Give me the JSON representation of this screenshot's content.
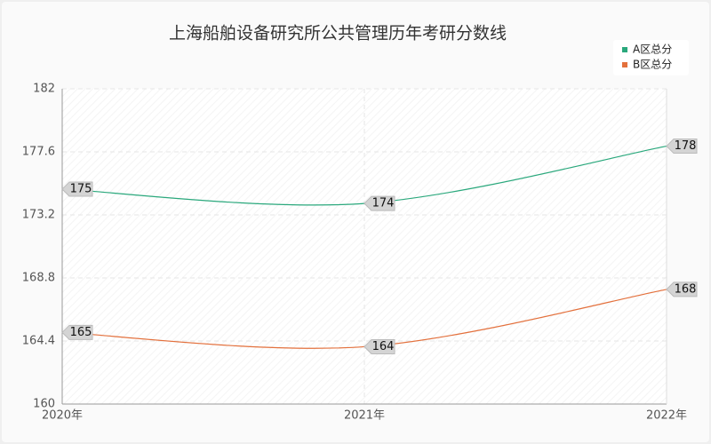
{
  "chart_data": {
    "type": "line",
    "title": "上海船舶设备研究所公共管理历年考研分数线",
    "categories": [
      "2020年",
      "2021年",
      "2022年"
    ],
    "series": [
      {
        "name": "A区总分",
        "color": "#2aa87c",
        "values": [
          175,
          174,
          178
        ]
      },
      {
        "name": "B区总分",
        "color": "#e3703c",
        "values": [
          165,
          164,
          168
        ]
      }
    ],
    "ylim": [
      160,
      182
    ],
    "yticks": [
      160,
      164.4,
      168.8,
      173.2,
      177.6,
      182
    ],
    "grid": true,
    "legend": "top-right"
  }
}
